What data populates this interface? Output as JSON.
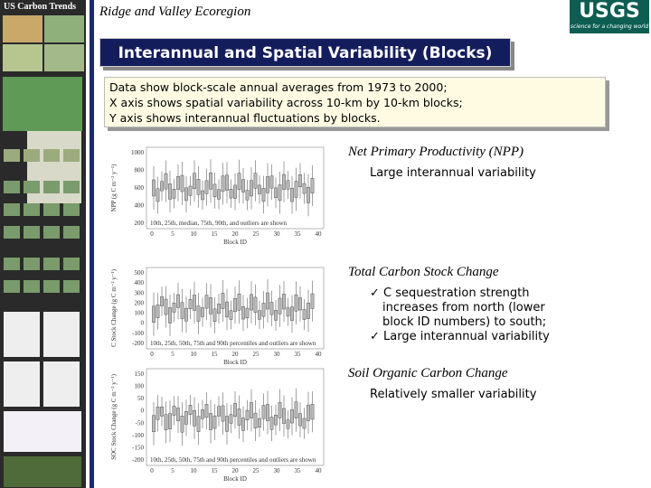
{
  "sidebar": {
    "label": "US Carbon Trends"
  },
  "header": {
    "title": "Ridge and Valley Ecoregion",
    "logo": "USGS",
    "logo_tagline": "science for a changing world"
  },
  "banner": {
    "title": "Interannual and Spatial Variability (Blocks)"
  },
  "summary": {
    "lines": [
      "Data show block-scale annual averages from 1973 to 2000;",
      "X axis shows spatial variability across 10-km by 10-km blocks;",
      "Y axis shows interannual fluctuations by blocks."
    ]
  },
  "panels": [
    {
      "heading": "Net Primary Productivity (NPP)",
      "notes": [
        "Large interannual variability"
      ],
      "figure": {
        "ylabel": "NPP (g C m⁻² y⁻¹)",
        "xlabel": "Block ID",
        "note": "10th, 25th, median, 75th, 90th, and outliers are shown",
        "yticks": [
          "1000",
          "800",
          "600",
          "400",
          "200"
        ],
        "xticks": [
          "0",
          "5",
          "10",
          "15",
          "20",
          "25",
          "30",
          "35",
          "40"
        ]
      }
    },
    {
      "heading": "Total Carbon Stock Change",
      "notes": [
        "✓ C sequestration strength",
        "increases from north (lower",
        "block ID numbers) to south;",
        "✓ Large interannual variability"
      ],
      "figure": {
        "ylabel": "C Stock Change (g C m⁻² y⁻¹)",
        "xlabel": "Block ID",
        "note": "10th, 25th, 50th, 75th and 90th percentiles and outliers are shown",
        "yticks": [
          "500",
          "400",
          "300",
          "200",
          "100",
          "0",
          "-100",
          "-200"
        ],
        "xticks": [
          "0",
          "5",
          "10",
          "15",
          "20",
          "25",
          "30",
          "35",
          "40"
        ]
      }
    },
    {
      "heading": "Soil Organic Carbon Change",
      "notes": [
        "Relatively smaller variability"
      ],
      "figure": {
        "ylabel": "SOC Stock Change (g C m⁻² y⁻¹)",
        "xlabel": "Block ID",
        "note": "10th, 25th, 50th, 75th and 90th percentiles and outliers are shown",
        "yticks": [
          "150",
          "100",
          "50",
          "0",
          "-50",
          "-100",
          "-150",
          "-200"
        ],
        "xticks": [
          "0",
          "5",
          "10",
          "15",
          "20",
          "25",
          "30",
          "35",
          "40"
        ]
      }
    }
  ]
}
